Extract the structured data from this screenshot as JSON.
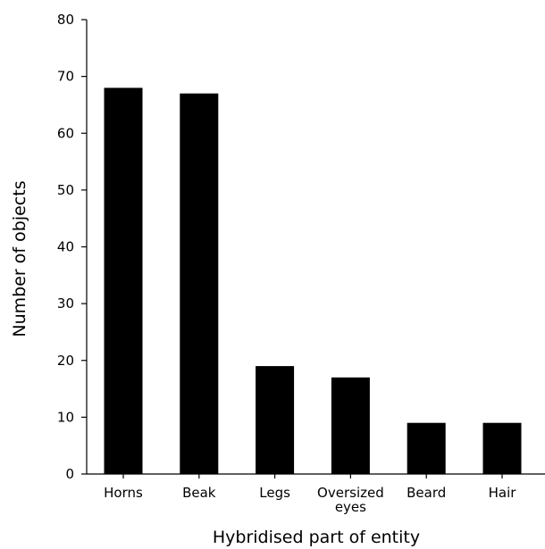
{
  "chart_data": {
    "type": "bar",
    "categories": [
      [
        "Horns"
      ],
      [
        "Beak"
      ],
      [
        "Legs"
      ],
      [
        "Oversized",
        "eyes"
      ],
      [
        "Beard"
      ],
      [
        "Hair"
      ]
    ],
    "values": [
      68,
      67,
      19,
      17,
      9,
      9
    ],
    "title": "",
    "xlabel": "Hybridised part of entity",
    "ylabel": "Number of objects",
    "ylim": [
      0,
      80
    ],
    "yticks": [
      0,
      10,
      20,
      30,
      40,
      50,
      60,
      70,
      80
    ],
    "grid": false,
    "legend": "none",
    "bar_color": "#000000",
    "axis_color": "#000000"
  }
}
